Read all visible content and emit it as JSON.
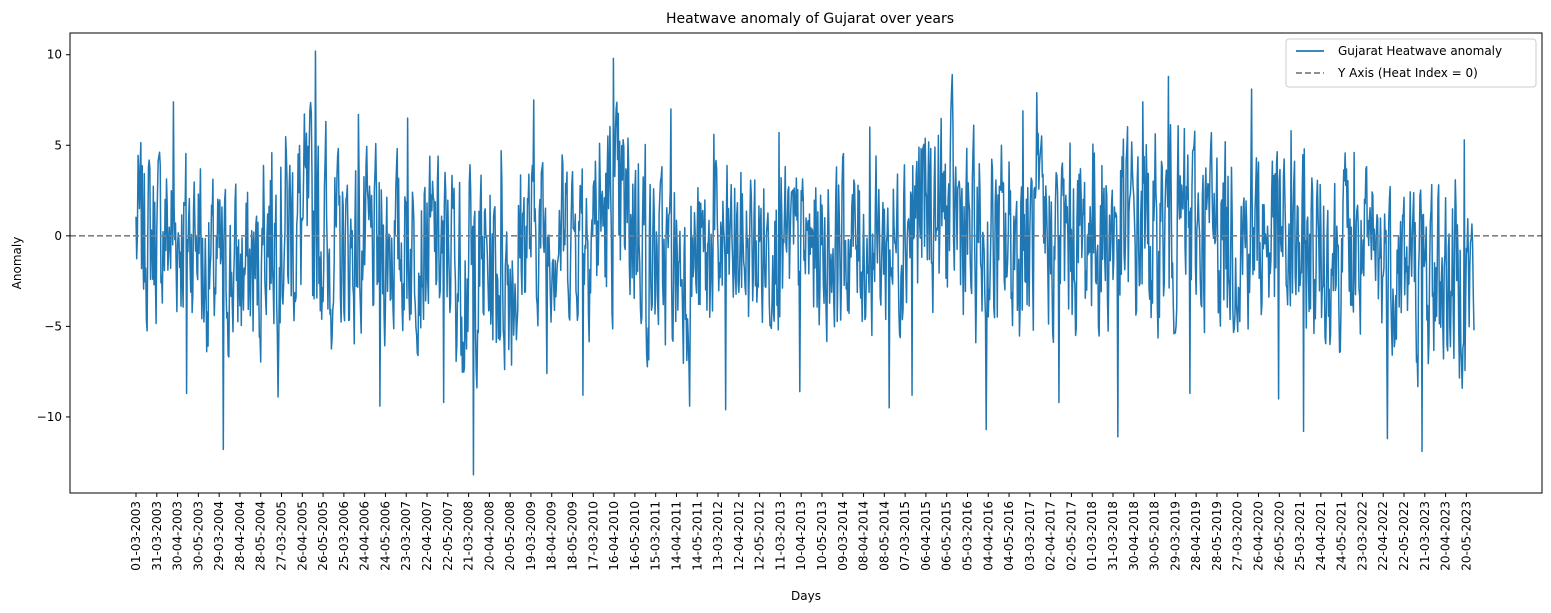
{
  "chart_data": {
    "type": "line",
    "title": "Heatwave anomaly of Gujarat over years",
    "xlabel": "Days",
    "ylabel": "Anomaly",
    "ylim": [
      -14.2,
      11.2
    ],
    "yticks": [
      -10,
      -5,
      0,
      5,
      10
    ],
    "ytick_labels": [
      "−10",
      "−5",
      "0",
      "5",
      "10"
    ],
    "xtick_labels": [
      "01-03-2003",
      "31-03-2003",
      "30-04-2003",
      "30-05-2003",
      "29-03-2004",
      "28-04-2004",
      "28-05-2004",
      "27-03-2005",
      "26-04-2005",
      "26-05-2005",
      "25-03-2006",
      "24-04-2006",
      "24-05-2006",
      "23-03-2007",
      "22-04-2007",
      "22-05-2007",
      "21-03-2008",
      "20-04-2008",
      "20-05-2008",
      "19-03-2009",
      "18-04-2009",
      "18-05-2009",
      "17-03-2010",
      "16-04-2010",
      "16-05-2010",
      "15-03-2011",
      "14-04-2011",
      "14-05-2011",
      "13-03-2012",
      "12-04-2012",
      "12-05-2012",
      "11-03-2013",
      "10-04-2013",
      "10-05-2013",
      "09-03-2014",
      "08-04-2014",
      "08-05-2014",
      "07-03-2015",
      "06-04-2015",
      "06-05-2015",
      "05-03-2016",
      "04-04-2016",
      "04-05-2016",
      "03-03-2017",
      "02-04-2017",
      "02-05-2017",
      "01-03-2018",
      "31-03-2018",
      "30-04-2018",
      "30-05-2018",
      "29-03-2019",
      "28-04-2019",
      "28-05-2019",
      "27-03-2020",
      "26-04-2020",
      "26-05-2020",
      "25-03-2021",
      "24-04-2021",
      "24-05-2021",
      "23-03-2022",
      "22-04-2022",
      "22-05-2022",
      "21-03-2023",
      "20-04-2023",
      "20-05-2023"
    ],
    "grid": false,
    "legend": {
      "placement": "upper-right"
    },
    "series": [
      {
        "name": "Gujarat Heatwave anomaly",
        "color": "#1f77b4",
        "style": "solid",
        "seasons": [
          {
            "start": "01-03-2003",
            "days": 92,
            "min": -8.7,
            "max": 7.4,
            "mean": 0.2
          },
          {
            "start": "01-03-2004",
            "days": 92,
            "min": -11.8,
            "max": 3.7,
            "mean": -2.0
          },
          {
            "start": "01-03-2005",
            "days": 92,
            "min": -8.9,
            "max": 10.2,
            "mean": 0.6
          },
          {
            "start": "01-03-2006",
            "days": 92,
            "min": -9.4,
            "max": 6.7,
            "mean": -0.8
          },
          {
            "start": "01-03-2007",
            "days": 92,
            "min": -9.2,
            "max": 6.5,
            "mean": -0.5
          },
          {
            "start": "01-03-2008",
            "days": 92,
            "min": -13.2,
            "max": 4.7,
            "mean": -1.8
          },
          {
            "start": "01-03-2009",
            "days": 92,
            "min": -7.6,
            "max": 7.5,
            "mean": 0.3
          },
          {
            "start": "01-03-2010",
            "days": 92,
            "min": -8.8,
            "max": 9.8,
            "mean": 1.0
          },
          {
            "start": "01-03-2011",
            "days": 92,
            "min": -9.4,
            "max": 7.0,
            "mean": -1.5
          },
          {
            "start": "01-03-2012",
            "days": 92,
            "min": -9.6,
            "max": 5.6,
            "mean": -0.8
          },
          {
            "start": "01-03-2013",
            "days": 92,
            "min": -8.6,
            "max": 5.7,
            "mean": -0.8
          },
          {
            "start": "01-03-2014",
            "days": 92,
            "min": -9.5,
            "max": 6.0,
            "mean": -0.5
          },
          {
            "start": "01-03-2015",
            "days": 92,
            "min": -8.8,
            "max": 8.9,
            "mean": 1.2
          },
          {
            "start": "01-03-2016",
            "days": 92,
            "min": -10.7,
            "max": 6.9,
            "mean": -0.5
          },
          {
            "start": "01-03-2017",
            "days": 92,
            "min": -9.2,
            "max": 7.9,
            "mean": -0.2
          },
          {
            "start": "01-03-2018",
            "days": 92,
            "min": -11.1,
            "max": 7.4,
            "mean": 0.2
          },
          {
            "start": "01-03-2019",
            "days": 92,
            "min": -8.7,
            "max": 8.8,
            "mean": 0.5
          },
          {
            "start": "01-03-2020",
            "days": 92,
            "min": -9.0,
            "max": 8.1,
            "mean": 0.0
          },
          {
            "start": "01-03-2021",
            "days": 92,
            "min": -10.8,
            "max": 5.8,
            "mean": -0.8
          },
          {
            "start": "01-03-2022",
            "days": 92,
            "min": -11.2,
            "max": 4.6,
            "mean": -1.5
          },
          {
            "start": "01-03-2023",
            "days": 92,
            "min": -11.9,
            "max": 5.3,
            "mean": -2.2
          }
        ]
      },
      {
        "name": "Y Axis (Heat Index = 0)",
        "color": "#808080",
        "style": "dashed",
        "y": 0
      }
    ]
  }
}
